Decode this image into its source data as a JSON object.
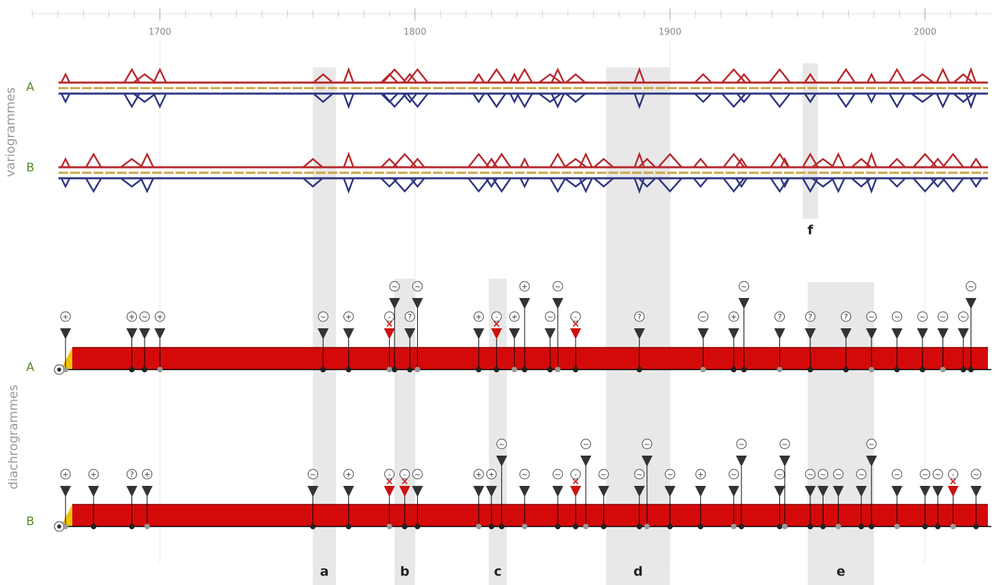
{
  "timeline": {
    "xlim": [
      1650,
      2026
    ],
    "xticks": [
      1700,
      1800,
      1900,
      2000
    ]
  },
  "sections": {
    "variograms": "variogrammes",
    "diachrograms": "diachrogrammes"
  },
  "variogram_rows": [
    "A",
    "B"
  ],
  "diachrogram_rows": [
    {
      "label": "A",
      "events": [
        {
          "year": 1663,
          "symbol": "+"
        },
        {
          "year": 1689,
          "symbol": "+"
        },
        {
          "year": 1694,
          "symbol": "~"
        },
        {
          "year": 1700,
          "symbol": "+"
        },
        {
          "year": 1764,
          "symbol": "~"
        },
        {
          "year": 1774,
          "symbol": "+"
        },
        {
          "year": 1790,
          "symbol": "-"
        },
        {
          "year": 1792,
          "symbol": "~"
        },
        {
          "year": 1798,
          "symbol": "?"
        },
        {
          "year": 1801,
          "symbol": "~"
        },
        {
          "year": 1825,
          "symbol": "+"
        },
        {
          "year": 1832,
          "symbol": "-"
        },
        {
          "year": 1839,
          "symbol": "+"
        },
        {
          "year": 1843,
          "symbol": "+"
        },
        {
          "year": 1853,
          "symbol": "~"
        },
        {
          "year": 1856,
          "symbol": "~"
        },
        {
          "year": 1863,
          "symbol": "-"
        },
        {
          "year": 1888,
          "symbol": "?"
        },
        {
          "year": 1913,
          "symbol": "~"
        },
        {
          "year": 1925,
          "symbol": "+"
        },
        {
          "year": 1929,
          "symbol": "~"
        },
        {
          "year": 1943,
          "symbol": "?"
        },
        {
          "year": 1955,
          "symbol": "?"
        },
        {
          "year": 1969,
          "symbol": "?"
        },
        {
          "year": 1979,
          "symbol": "~"
        },
        {
          "year": 1989,
          "symbol": "~"
        },
        {
          "year": 1999,
          "symbol": "~"
        },
        {
          "year": 2007,
          "symbol": "~"
        },
        {
          "year": 2015,
          "symbol": "~"
        },
        {
          "year": 2018,
          "symbol": "~"
        }
      ]
    },
    {
      "label": "B",
      "events": [
        {
          "year": 1663,
          "symbol": "+"
        },
        {
          "year": 1674,
          "symbol": "+"
        },
        {
          "year": 1689,
          "symbol": "?"
        },
        {
          "year": 1695,
          "symbol": "+"
        },
        {
          "year": 1760,
          "symbol": "~"
        },
        {
          "year": 1774,
          "symbol": "+"
        },
        {
          "year": 1790,
          "symbol": "-"
        },
        {
          "year": 1796,
          "symbol": "-"
        },
        {
          "year": 1801,
          "symbol": "~"
        },
        {
          "year": 1825,
          "symbol": "+"
        },
        {
          "year": 1830,
          "symbol": "+"
        },
        {
          "year": 1834,
          "symbol": "~"
        },
        {
          "year": 1843,
          "symbol": "~"
        },
        {
          "year": 1856,
          "symbol": "~"
        },
        {
          "year": 1863,
          "symbol": "-"
        },
        {
          "year": 1867,
          "symbol": "~"
        },
        {
          "year": 1874,
          "symbol": "~"
        },
        {
          "year": 1888,
          "symbol": "~"
        },
        {
          "year": 1891,
          "symbol": "~"
        },
        {
          "year": 1900,
          "symbol": "~"
        },
        {
          "year": 1912,
          "symbol": "+"
        },
        {
          "year": 1925,
          "symbol": "~"
        },
        {
          "year": 1928,
          "symbol": "~"
        },
        {
          "year": 1943,
          "symbol": "~"
        },
        {
          "year": 1945,
          "symbol": "~"
        },
        {
          "year": 1955,
          "symbol": "~"
        },
        {
          "year": 1960,
          "symbol": "~"
        },
        {
          "year": 1966,
          "symbol": "~"
        },
        {
          "year": 1975,
          "symbol": "~"
        },
        {
          "year": 1979,
          "symbol": "~"
        },
        {
          "year": 1989,
          "symbol": "~"
        },
        {
          "year": 2000,
          "symbol": "~"
        },
        {
          "year": 2005,
          "symbol": "~"
        },
        {
          "year": 2011,
          "symbol": "-"
        },
        {
          "year": 2020,
          "symbol": "~"
        }
      ]
    }
  ],
  "bands": [
    {
      "label": "a",
      "start": 1760,
      "end": 1769
    },
    {
      "label": "b",
      "start": 1792,
      "end": 1800
    },
    {
      "label": "c",
      "start": 1829,
      "end": 1836
    },
    {
      "label": "d",
      "start": 1875,
      "end": 1900
    },
    {
      "label": "e",
      "start": 1954,
      "end": 1980
    },
    {
      "label": "f",
      "start": 1952,
      "end": 1958
    }
  ]
}
